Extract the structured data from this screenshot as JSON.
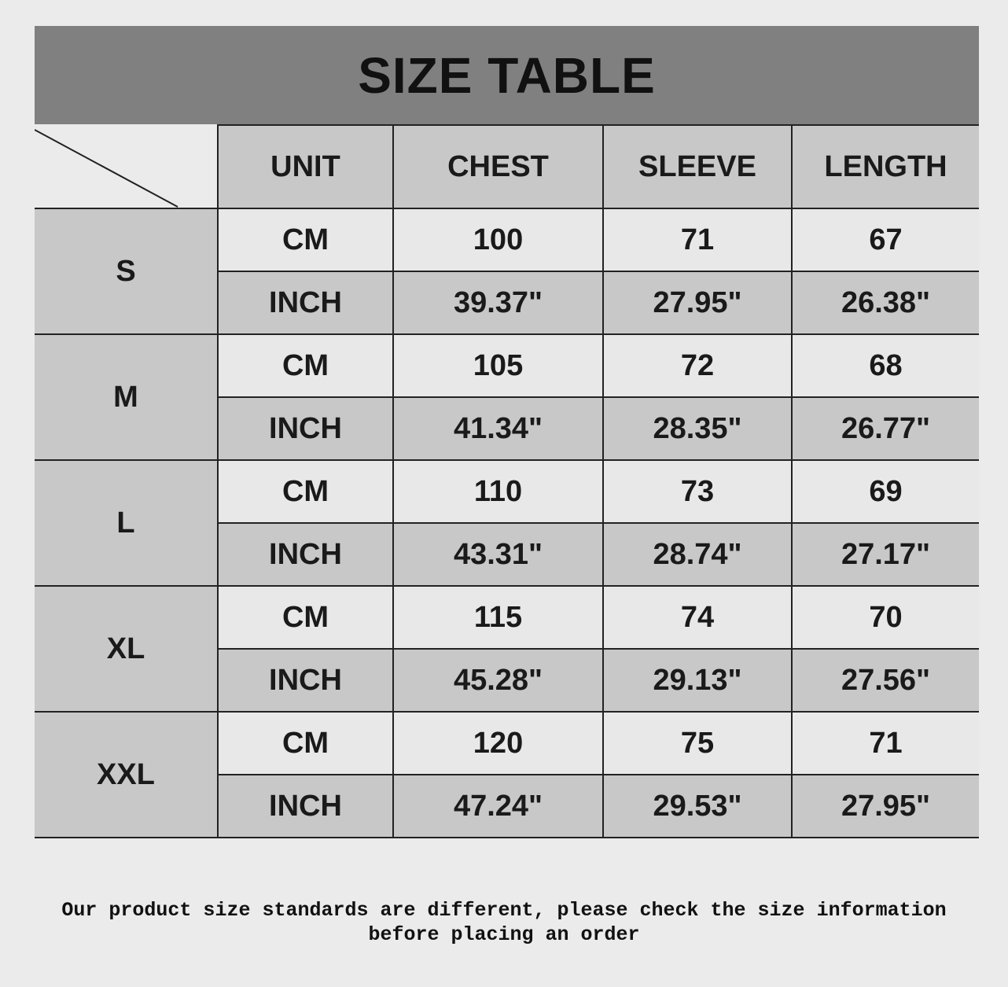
{
  "title": "SIZE TABLE",
  "headers": [
    "UNIT",
    "CHEST",
    "SLEEVE",
    "LENGTH"
  ],
  "rows": [
    {
      "size": "S",
      "cm": {
        "unit": "CM",
        "chest": "100",
        "sleeve": "71",
        "length": "67"
      },
      "inch": {
        "unit": "INCH",
        "chest": "39.37\"",
        "sleeve": "27.95\"",
        "length": "26.38\""
      }
    },
    {
      "size": "M",
      "cm": {
        "unit": "CM",
        "chest": "105",
        "sleeve": "72",
        "length": "68"
      },
      "inch": {
        "unit": "INCH",
        "chest": "41.34\"",
        "sleeve": "28.35\"",
        "length": "26.77\""
      }
    },
    {
      "size": "L",
      "cm": {
        "unit": "CM",
        "chest": "110",
        "sleeve": "73",
        "length": "69"
      },
      "inch": {
        "unit": "INCH",
        "chest": "43.31\"",
        "sleeve": "28.74\"",
        "length": "27.17\""
      }
    },
    {
      "size": "XL",
      "cm": {
        "unit": "CM",
        "chest": "115",
        "sleeve": "74",
        "length": "70"
      },
      "inch": {
        "unit": "INCH",
        "chest": "45.28\"",
        "sleeve": "29.13\"",
        "length": "27.56\""
      }
    },
    {
      "size": "XXL",
      "cm": {
        "unit": "CM",
        "chest": "120",
        "sleeve": "75",
        "length": "71"
      },
      "inch": {
        "unit": "INCH",
        "chest": "47.24\"",
        "sleeve": "29.53\"",
        "length": "27.95\""
      }
    }
  ],
  "footer": {
    "line1": "Our product size standards are different, please check the size information",
    "line2": "before placing an order"
  }
}
